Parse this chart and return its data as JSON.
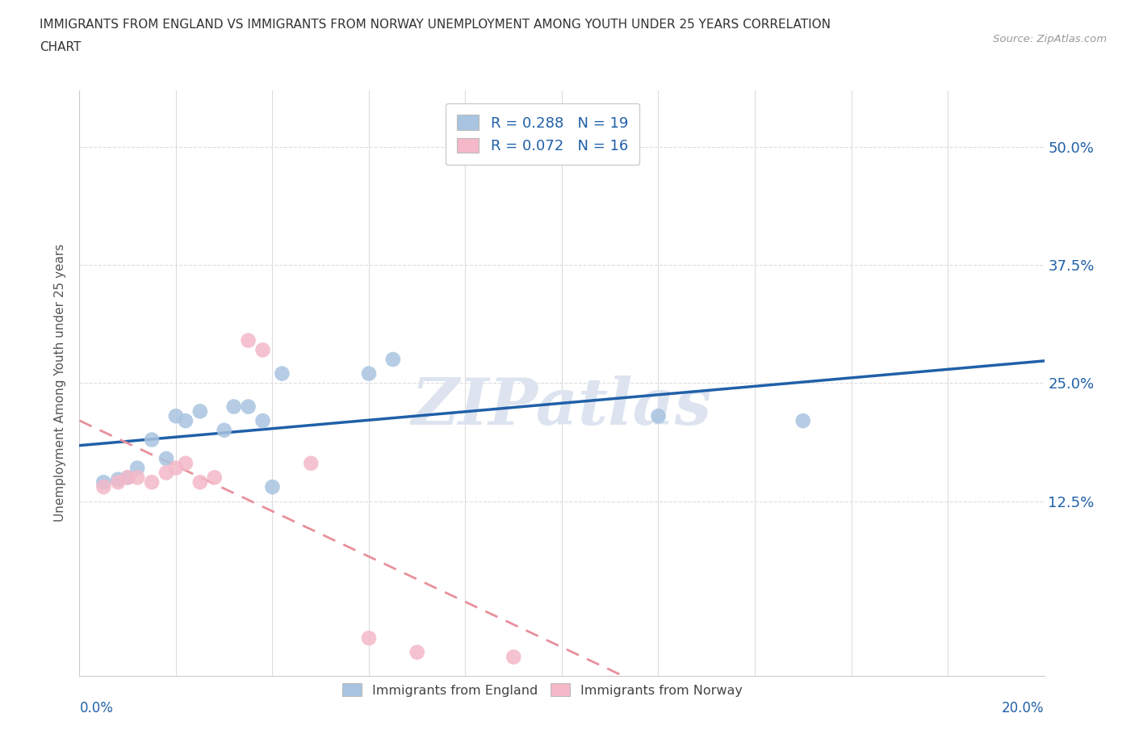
{
  "title_line1": "IMMIGRANTS FROM ENGLAND VS IMMIGRANTS FROM NORWAY UNEMPLOYMENT AMONG YOUTH UNDER 25 YEARS CORRELATION",
  "title_line2": "CHART",
  "source": "Source: ZipAtlas.com",
  "ylabel": "Unemployment Among Youth under 25 years",
  "yticks": [
    "12.5%",
    "25.0%",
    "37.5%",
    "50.0%"
  ],
  "ytick_vals": [
    0.125,
    0.25,
    0.375,
    0.5
  ],
  "xlim": [
    0.0,
    0.2
  ],
  "ylim": [
    -0.06,
    0.56
  ],
  "england_color": "#a8c4e0",
  "norway_color": "#f4b8c8",
  "england_line_color": "#2060a8",
  "norway_line_color": "#e8909c",
  "england_R": 0.288,
  "england_N": 19,
  "norway_R": 0.072,
  "norway_N": 16,
  "england_scatter_x": [
    0.005,
    0.008,
    0.01,
    0.012,
    0.015,
    0.018,
    0.02,
    0.022,
    0.025,
    0.03,
    0.032,
    0.035,
    0.038,
    0.04,
    0.042,
    0.06,
    0.065,
    0.12,
    0.15
  ],
  "england_scatter_y": [
    0.145,
    0.148,
    0.15,
    0.16,
    0.19,
    0.17,
    0.215,
    0.21,
    0.22,
    0.2,
    0.225,
    0.225,
    0.21,
    0.14,
    0.26,
    0.26,
    0.275,
    0.215,
    0.21
  ],
  "norway_scatter_x": [
    0.005,
    0.008,
    0.01,
    0.012,
    0.015,
    0.018,
    0.02,
    0.022,
    0.025,
    0.028,
    0.035,
    0.038,
    0.048,
    0.06,
    0.07,
    0.09
  ],
  "norway_scatter_y": [
    0.14,
    0.145,
    0.15,
    0.15,
    0.145,
    0.155,
    0.16,
    0.165,
    0.145,
    0.15,
    0.295,
    0.285,
    0.165,
    -0.02,
    -0.035,
    -0.04
  ],
  "watermark": "ZIPatlas",
  "background_color": "#ffffff",
  "grid_color": "#dddddd",
  "grid_linestyle_y": "--",
  "grid_linestyle_x": "-"
}
